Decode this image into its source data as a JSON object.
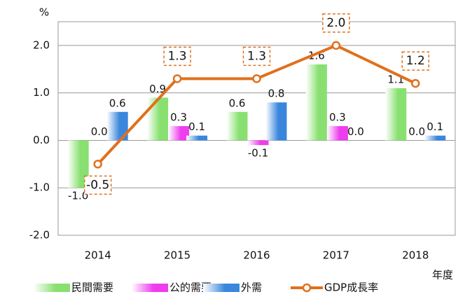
{
  "chart_data": {
    "type": "bar-line",
    "y_label": "%",
    "x_label": "年度",
    "categories": [
      "2014",
      "2015",
      "2016",
      "2017",
      "2018"
    ],
    "ylim": [
      -2,
      2.5
    ],
    "yticks": [
      {
        "value": -2,
        "label": "-2.0"
      },
      {
        "value": -1,
        "label": "-1.0"
      },
      {
        "value": 0,
        "label": "0.0"
      },
      {
        "value": 1,
        "label": "1.0"
      },
      {
        "value": 2,
        "label": "2.0"
      }
    ],
    "grid": true,
    "legend": "bottom",
    "series": [
      {
        "name": "民間需要",
        "type": "bar",
        "color": "#88e070",
        "values": [
          -1.0,
          0.9,
          0.6,
          1.6,
          1.1
        ],
        "value_labels": [
          "-1.0",
          "0.9",
          "0.6",
          "1.6",
          "1.1"
        ]
      },
      {
        "name": "公的需要",
        "type": "bar",
        "color": "#ee3cee",
        "values": [
          0.0,
          0.3,
          -0.1,
          0.3,
          0.0
        ],
        "value_labels": [
          "0.0",
          "0.3",
          "-0.1",
          "0.3",
          "0.0"
        ]
      },
      {
        "name": "外需",
        "type": "bar",
        "color": "#3a86dc",
        "values": [
          0.6,
          0.1,
          0.8,
          0.0,
          0.1
        ],
        "value_labels": [
          "0.6",
          "0.1",
          "0.8",
          "0.0",
          "0.1"
        ]
      },
      {
        "name": "GDP成長率",
        "type": "line",
        "color": "#e0701c",
        "values": [
          -0.5,
          1.3,
          1.3,
          2.0,
          1.2
        ],
        "value_labels": [
          "-0.5",
          "1.3",
          "1.3",
          "2.0",
          "1.2"
        ]
      }
    ]
  }
}
